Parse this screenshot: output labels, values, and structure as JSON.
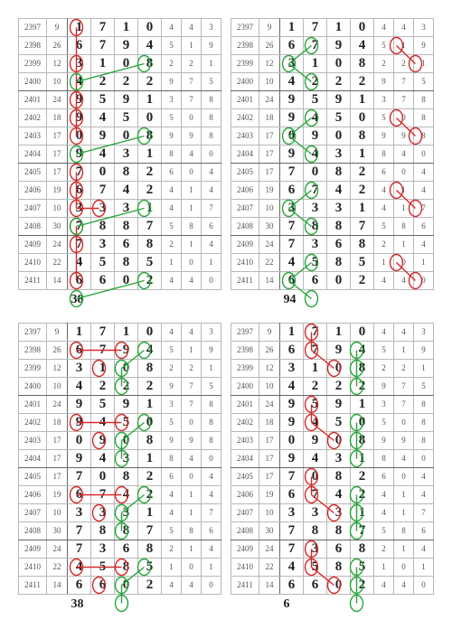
{
  "table": {
    "rows": [
      {
        "id": "2397",
        "s": "9",
        "d": [
          "1",
          "7",
          "1",
          "0"
        ],
        "t": [
          "4",
          "4",
          "3"
        ]
      },
      {
        "id": "2398",
        "s": "26",
        "d": [
          "6",
          "7",
          "9",
          "4"
        ],
        "t": [
          "5",
          "1",
          "9"
        ]
      },
      {
        "id": "2399",
        "s": "12",
        "d": [
          "3",
          "1",
          "0",
          "8"
        ],
        "t": [
          "2",
          "2",
          "1"
        ]
      },
      {
        "id": "2400",
        "s": "10",
        "d": [
          "4",
          "2",
          "2",
          "2"
        ],
        "t": [
          "9",
          "7",
          "5"
        ]
      },
      {
        "id": "2401",
        "s": "24",
        "d": [
          "9",
          "5",
          "9",
          "1"
        ],
        "t": [
          "3",
          "7",
          "8"
        ]
      },
      {
        "id": "2402",
        "s": "18",
        "d": [
          "9",
          "4",
          "5",
          "0"
        ],
        "t": [
          "5",
          "0",
          "8"
        ]
      },
      {
        "id": "2403",
        "s": "17",
        "d": [
          "0",
          "9",
          "0",
          "8"
        ],
        "t": [
          "9",
          "9",
          "8"
        ]
      },
      {
        "id": "2404",
        "s": "17",
        "d": [
          "9",
          "4",
          "3",
          "1"
        ],
        "t": [
          "8",
          "4",
          "0"
        ]
      },
      {
        "id": "2405",
        "s": "17",
        "d": [
          "7",
          "0",
          "8",
          "2"
        ],
        "t": [
          "6",
          "0",
          "4"
        ]
      },
      {
        "id": "2406",
        "s": "19",
        "d": [
          "6",
          "7",
          "4",
          "2"
        ],
        "t": [
          "4",
          "1",
          "4"
        ]
      },
      {
        "id": "2407",
        "s": "10",
        "d": [
          "3",
          "3",
          "3",
          "1"
        ],
        "t": [
          "4",
          "1",
          "7"
        ]
      },
      {
        "id": "2408",
        "s": "30",
        "d": [
          "7",
          "8",
          "8",
          "7"
        ],
        "t": [
          "5",
          "8",
          "6"
        ]
      },
      {
        "id": "2409",
        "s": "24",
        "d": [
          "7",
          "3",
          "6",
          "8"
        ],
        "t": [
          "2",
          "1",
          "4"
        ]
      },
      {
        "id": "2410",
        "s": "22",
        "d": [
          "4",
          "5",
          "8",
          "5"
        ],
        "t": [
          "1",
          "0",
          "1"
        ]
      },
      {
        "id": "2411",
        "s": "14",
        "d": [
          "6",
          "6",
          "0",
          "2"
        ],
        "t": [
          "4",
          "4",
          "0"
        ]
      }
    ]
  },
  "panels": [
    {
      "extra": "38",
      "red": [
        [
          0,
          0
        ],
        [
          2,
          0
        ],
        [
          4,
          0
        ],
        [
          5,
          0
        ],
        [
          6,
          0
        ],
        [
          8,
          0
        ],
        [
          9,
          0
        ],
        [
          10,
          0
        ],
        [
          10,
          1
        ],
        [
          11,
          0
        ],
        [
          12,
          0
        ],
        [
          14,
          0
        ]
      ],
      "green": [
        [
          2,
          3
        ],
        [
          3,
          0
        ],
        [
          6,
          3
        ],
        [
          7,
          0
        ],
        [
          10,
          3
        ],
        [
          11,
          0
        ],
        [
          14,
          3
        ],
        [
          15,
          0
        ]
      ],
      "redLines": [
        [
          [
            0,
            0
          ],
          [
            2,
            0
          ]
        ],
        [
          [
            2,
            0
          ],
          [
            4,
            0
          ]
        ],
        [
          [
            4,
            0
          ],
          [
            5,
            0
          ]
        ],
        [
          [
            5,
            0
          ],
          [
            6,
            0
          ]
        ],
        [
          [
            8,
            0
          ],
          [
            9,
            0
          ]
        ],
        [
          [
            9,
            0
          ],
          [
            10,
            0
          ]
        ],
        [
          [
            10,
            0
          ],
          [
            10,
            1
          ]
        ],
        [
          [
            11,
            0
          ],
          [
            12,
            0
          ]
        ],
        [
          [
            12,
            0
          ],
          [
            14,
            0
          ]
        ]
      ],
      "greenLines": [
        [
          [
            2,
            3
          ],
          [
            3,
            0
          ]
        ],
        [
          [
            6,
            3
          ],
          [
            7,
            0
          ]
        ],
        [
          [
            10,
            3
          ],
          [
            11,
            0
          ]
        ],
        [
          [
            14,
            3
          ],
          [
            15,
            0
          ]
        ]
      ]
    },
    {
      "extra": "94",
      "red": [
        [
          1,
          5
        ],
        [
          2,
          6
        ],
        [
          5,
          5
        ],
        [
          6,
          6
        ],
        [
          9,
          5
        ],
        [
          10,
          6
        ],
        [
          13,
          5
        ],
        [
          14,
          6
        ]
      ],
      "green": [
        [
          1,
          1
        ],
        [
          2,
          0
        ],
        [
          3,
          1
        ],
        [
          5,
          1
        ],
        [
          6,
          0
        ],
        [
          7,
          1
        ],
        [
          9,
          1
        ],
        [
          10,
          0
        ],
        [
          11,
          1
        ],
        [
          13,
          1
        ],
        [
          14,
          0
        ],
        [
          15,
          1
        ]
      ],
      "redLines": [
        [
          [
            1,
            5
          ],
          [
            2,
            6
          ]
        ],
        [
          [
            5,
            5
          ],
          [
            6,
            6
          ]
        ],
        [
          [
            9,
            5
          ],
          [
            10,
            6
          ]
        ],
        [
          [
            13,
            5
          ],
          [
            14,
            6
          ]
        ]
      ],
      "greenLines": [
        [
          [
            1,
            1
          ],
          [
            2,
            0
          ]
        ],
        [
          [
            2,
            0
          ],
          [
            3,
            1
          ]
        ],
        [
          [
            5,
            1
          ],
          [
            6,
            0
          ]
        ],
        [
          [
            6,
            0
          ],
          [
            7,
            1
          ]
        ],
        [
          [
            9,
            1
          ],
          [
            10,
            0
          ]
        ],
        [
          [
            10,
            0
          ],
          [
            11,
            1
          ]
        ],
        [
          [
            13,
            1
          ],
          [
            14,
            0
          ]
        ],
        [
          [
            14,
            0
          ],
          [
            15,
            1
          ]
        ]
      ]
    },
    {
      "extra": "38",
      "red": [
        [
          1,
          0
        ],
        [
          1,
          2
        ],
        [
          2,
          1
        ],
        [
          5,
          0
        ],
        [
          5,
          2
        ],
        [
          6,
          1
        ],
        [
          9,
          0
        ],
        [
          9,
          2
        ],
        [
          10,
          1
        ],
        [
          13,
          0
        ],
        [
          13,
          2
        ],
        [
          14,
          1
        ]
      ],
      "green": [
        [
          1,
          3
        ],
        [
          2,
          2
        ],
        [
          3,
          2
        ],
        [
          5,
          3
        ],
        [
          6,
          2
        ],
        [
          7,
          2
        ],
        [
          9,
          3
        ],
        [
          10,
          2
        ],
        [
          11,
          2
        ],
        [
          13,
          3
        ],
        [
          14,
          2
        ],
        [
          15,
          2
        ]
      ],
      "redLines": [
        [
          [
            1,
            0
          ],
          [
            1,
            2
          ]
        ],
        [
          [
            5,
            0
          ],
          [
            5,
            2
          ]
        ],
        [
          [
            9,
            0
          ],
          [
            9,
            2
          ]
        ],
        [
          [
            13,
            0
          ],
          [
            13,
            2
          ]
        ]
      ],
      "greenLines": [
        [
          [
            1,
            3
          ],
          [
            2,
            2
          ]
        ],
        [
          [
            2,
            2
          ],
          [
            3,
            2
          ]
        ],
        [
          [
            5,
            3
          ],
          [
            6,
            2
          ]
        ],
        [
          [
            6,
            2
          ],
          [
            7,
            2
          ]
        ],
        [
          [
            9,
            3
          ],
          [
            10,
            2
          ]
        ],
        [
          [
            10,
            2
          ],
          [
            11,
            2
          ]
        ],
        [
          [
            13,
            3
          ],
          [
            14,
            2
          ]
        ],
        [
          [
            14,
            2
          ],
          [
            15,
            2
          ]
        ]
      ]
    },
    {
      "extra": "6",
      "red": [
        [
          0,
          1
        ],
        [
          1,
          1
        ],
        [
          2,
          2
        ],
        [
          4,
          1
        ],
        [
          5,
          1
        ],
        [
          6,
          2
        ],
        [
          8,
          1
        ],
        [
          9,
          1
        ],
        [
          10,
          2
        ],
        [
          12,
          1
        ],
        [
          13,
          1
        ],
        [
          14,
          2
        ]
      ],
      "green": [
        [
          1,
          3
        ],
        [
          2,
          3
        ],
        [
          3,
          3
        ],
        [
          5,
          3
        ],
        [
          6,
          3
        ],
        [
          7,
          3
        ],
        [
          9,
          3
        ],
        [
          10,
          3
        ],
        [
          11,
          3
        ],
        [
          13,
          3
        ],
        [
          14,
          3
        ],
        [
          15,
          3
        ]
      ],
      "redLines": [
        [
          [
            0,
            1
          ],
          [
            1,
            1
          ]
        ],
        [
          [
            1,
            1
          ],
          [
            2,
            2
          ]
        ],
        [
          [
            4,
            1
          ],
          [
            5,
            1
          ]
        ],
        [
          [
            5,
            1
          ],
          [
            6,
            2
          ]
        ],
        [
          [
            8,
            1
          ],
          [
            9,
            1
          ]
        ],
        [
          [
            9,
            1
          ],
          [
            10,
            2
          ]
        ],
        [
          [
            12,
            1
          ],
          [
            13,
            1
          ]
        ],
        [
          [
            13,
            1
          ],
          [
            14,
            2
          ]
        ]
      ],
      "greenLines": [
        [
          [
            1,
            3
          ],
          [
            2,
            3
          ]
        ],
        [
          [
            2,
            3
          ],
          [
            3,
            3
          ]
        ],
        [
          [
            5,
            3
          ],
          [
            6,
            3
          ]
        ],
        [
          [
            6,
            3
          ],
          [
            7,
            3
          ]
        ],
        [
          [
            9,
            3
          ],
          [
            10,
            3
          ]
        ],
        [
          [
            10,
            3
          ],
          [
            11,
            3
          ]
        ],
        [
          [
            13,
            3
          ],
          [
            14,
            3
          ]
        ],
        [
          [
            14,
            3
          ],
          [
            15,
            3
          ]
        ]
      ]
    }
  ],
  "colors": {
    "red": "#d42a2a",
    "green": "#27a53a"
  }
}
